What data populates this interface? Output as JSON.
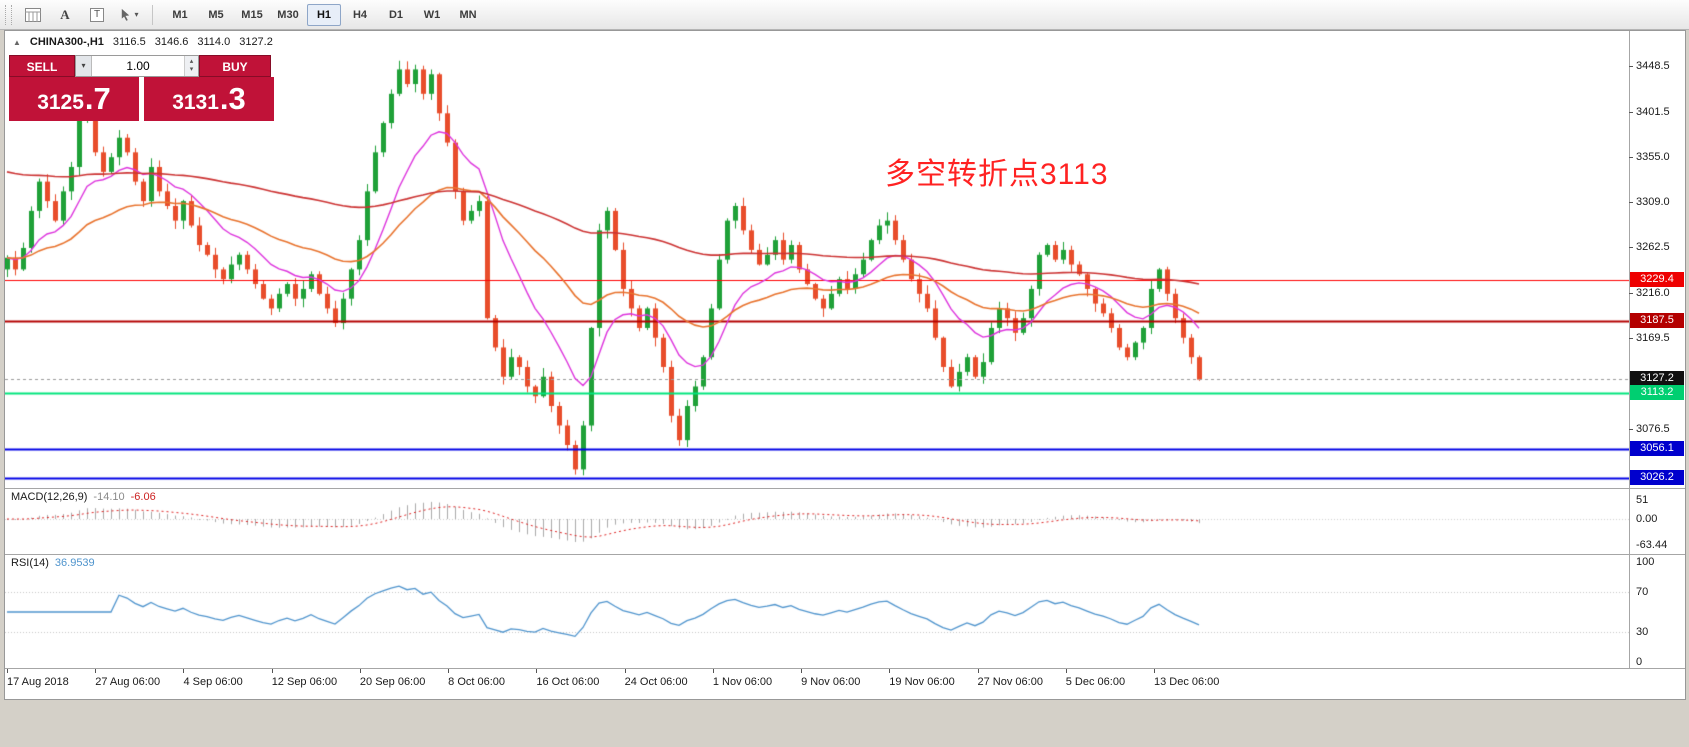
{
  "toolbar": {
    "icon_a_label": "A",
    "icon_t_label": "T",
    "timeframes": [
      "M1",
      "M5",
      "M15",
      "M30",
      "H1",
      "H4",
      "D1",
      "W1",
      "MN"
    ],
    "active_timeframe": "H1"
  },
  "chart": {
    "header": {
      "symbol": "CHINA300-,H1",
      "open": "3116.5",
      "high": "3146.6",
      "low": "3114.0",
      "close": "3127.2"
    },
    "trade_panel": {
      "sell_label": "SELL",
      "buy_label": "BUY",
      "volume": "1.00",
      "sell_price_main": "3125",
      "sell_price_frac": ".7",
      "buy_price_main": "3131",
      "buy_price_frac": ".3",
      "panel_color": "#c01238"
    },
    "annotation": {
      "text": "多空转折点3113",
      "color": "#ff2222"
    },
    "price_axis_labels": [
      "3448.5",
      "3401.5",
      "3355.0",
      "3309.0",
      "3262.5",
      "3216.0",
      "3169.5",
      "3076.5"
    ],
    "price_lines": [
      {
        "price": 3229.4,
        "label": "3229.4",
        "color": "#ff0000",
        "tag_bg": "#ee0000",
        "width": 1,
        "dash": []
      },
      {
        "price": 3187.5,
        "label": "3187.5",
        "color": "#b40000",
        "tag_bg": "#b40000",
        "width": 2,
        "dash": []
      },
      {
        "price": 3127.2,
        "label": "3127.2",
        "color": "#9a9a9a",
        "tag_bg": "#101010",
        "width": 1,
        "dash": [
          3,
          3
        ]
      },
      {
        "price": 3113.2,
        "label": "3113.2",
        "color": "#00e57d",
        "tag_bg": "#00cf71",
        "width": 2,
        "dash": []
      },
      {
        "price": 3056.1,
        "label": "3056.1",
        "color": "#0000e6",
        "tag_bg": "#0000cd",
        "width": 2,
        "dash": []
      },
      {
        "price": 3026.2,
        "label": "3026.2",
        "color": "#0000e6",
        "tag_bg": "#0000cd",
        "width": 2,
        "dash": []
      }
    ]
  },
  "macd": {
    "name": "MACD(12,26,9)",
    "value_main": "-14.10",
    "value_signal": "-6.06",
    "axis_labels": [
      "51",
      "0.00",
      "-63.44"
    ]
  },
  "rsi": {
    "name": "RSI(14)",
    "value": "36.9539",
    "axis_labels": [
      "100",
      "70",
      "30",
      "0"
    ]
  },
  "time_axis_labels": [
    "17 Aug 2018",
    "27 Aug 06:00",
    "4 Sep 06:00",
    "12 Sep 06:00",
    "20 Sep 06:00",
    "8 Oct 06:00",
    "16 Oct 06:00",
    "24 Oct 06:00",
    "1 Nov 06:00",
    "9 Nov 06:00",
    "19 Nov 06:00",
    "27 Nov 06:00",
    "5 Dec 06:00",
    "13 Dec 06:00"
  ],
  "chart_data": {
    "type": "candlestick",
    "symbol": "CHINA300-",
    "timeframe": "H1",
    "ohlc_current": {
      "open": 3116.5,
      "high": 3146.6,
      "low": 3114.0,
      "close": 3127.2
    },
    "y_axis_range": [
      3015,
      3485
    ],
    "closes": [
      3252,
      3240,
      3262,
      3300,
      3330,
      3310,
      3290,
      3320,
      3345,
      3395,
      3410,
      3360,
      3340,
      3355,
      3375,
      3360,
      3330,
      3310,
      3345,
      3320,
      3305,
      3290,
      3310,
      3285,
      3265,
      3255,
      3240,
      3230,
      3245,
      3255,
      3240,
      3225,
      3210,
      3200,
      3215,
      3225,
      3210,
      3220,
      3235,
      3215,
      3200,
      3185,
      3210,
      3240,
      3270,
      3320,
      3360,
      3390,
      3420,
      3445,
      3430,
      3445,
      3420,
      3440,
      3400,
      3370,
      3320,
      3290,
      3300,
      3310,
      3190,
      3160,
      3130,
      3150,
      3140,
      3120,
      3110,
      3130,
      3100,
      3080,
      3060,
      3035,
      3080,
      3180,
      3280,
      3300,
      3260,
      3220,
      3200,
      3180,
      3200,
      3170,
      3140,
      3090,
      3065,
      3100,
      3120,
      3150,
      3200,
      3250,
      3290,
      3305,
      3280,
      3260,
      3245,
      3255,
      3270,
      3250,
      3265,
      3240,
      3225,
      3210,
      3200,
      3215,
      3230,
      3220,
      3235,
      3250,
      3270,
      3285,
      3290,
      3270,
      3250,
      3230,
      3215,
      3200,
      3170,
      3140,
      3120,
      3135,
      3150,
      3130,
      3145,
      3180,
      3200,
      3190,
      3175,
      3190,
      3220,
      3255,
      3265,
      3250,
      3260,
      3245,
      3235,
      3220,
      3205,
      3195,
      3180,
      3160,
      3150,
      3165,
      3180,
      3220,
      3240,
      3215,
      3190,
      3170,
      3150,
      3127
    ],
    "ma_periods": {
      "fast": 12,
      "mid": 34,
      "slow": 120
    },
    "colors": {
      "up": "#1fa138",
      "down": "#e84d2b",
      "ma_fast": "#dd33dd",
      "ma_mid": "#e8732e",
      "ma_slow": "#cc3333",
      "rsi_line": "#4f94cd",
      "macd_hist": "#aaaaaa",
      "macd_signal": "#dd2222"
    },
    "indicators": [
      {
        "name": "MACD",
        "params": [
          12,
          26,
          9
        ],
        "values": [
          -14.1,
          -6.06
        ],
        "scale_max": 51,
        "scale_min": -63.44
      },
      {
        "name": "RSI",
        "params": [
          14
        ],
        "value": 36.9539,
        "scale_min": 0,
        "scale_max": 100,
        "levels": [
          70,
          30
        ]
      }
    ]
  }
}
